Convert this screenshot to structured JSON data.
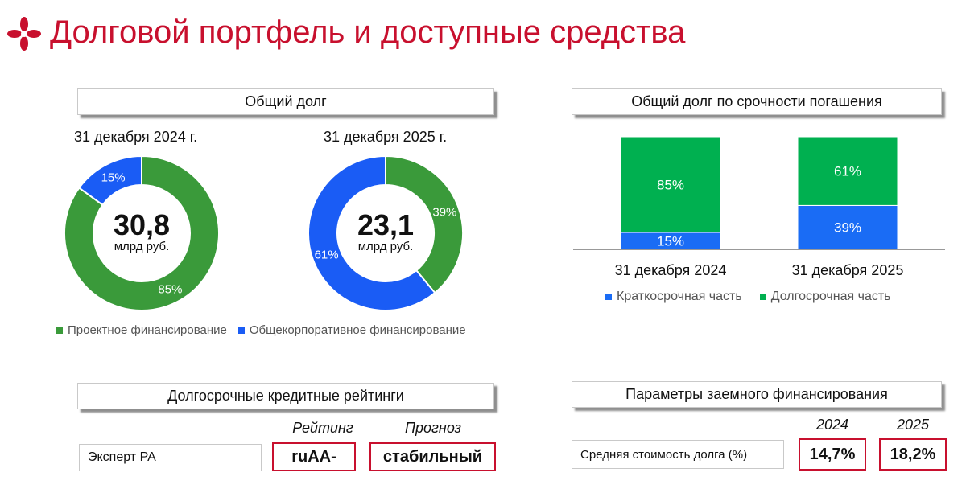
{
  "page": {
    "title": "Долговой портфель и доступные средства"
  },
  "colors": {
    "accent": "#c8102e",
    "green": "#3a9a3a",
    "blue": "#1a5cf5",
    "bar_green": "#00b050",
    "bar_blue": "#1a6cf5"
  },
  "total_debt": {
    "header": "Общий долг",
    "legend": [
      "Проектное финансирование",
      "Общекорпоративное финансирование"
    ],
    "charts": [
      {
        "date": "31 декабря 2024 г.",
        "value": "30,8",
        "unit": "млрд руб.",
        "labels": [
          "85%",
          "15%"
        ]
      },
      {
        "date": "31 декабря 2025 г.",
        "value": "23,1",
        "unit": "млрд руб.",
        "labels": [
          "39%",
          "61%"
        ]
      }
    ]
  },
  "maturity": {
    "header": "Общий долг по срочности погашения",
    "categories": [
      "31 декабря 2024",
      "31 декабря 2025"
    ],
    "legend": [
      "Краткосрочная часть",
      "Долгосрочная часть"
    ],
    "labels": {
      "short": [
        "15%",
        "39%"
      ],
      "long": [
        "85%",
        "61%"
      ]
    }
  },
  "ratings": {
    "header": "Долгосрочные кредитные рейтинги",
    "col_rating": "Рейтинг",
    "col_outlook": "Прогноз",
    "agency": "Эксперт РА",
    "rating": "ruAA-",
    "outlook": "стабильный"
  },
  "borrowing": {
    "header": "Параметры заемного финансирования",
    "years": [
      "2024",
      "2025"
    ],
    "metric": "Средняя стоимость долга (%)",
    "values": [
      "14,7%",
      "18,2%"
    ]
  },
  "chart_data": [
    {
      "type": "pie",
      "title": "31 декабря 2024 г.",
      "categories": [
        "Проектное финансирование",
        "Общекорпоративное финансирование"
      ],
      "values": [
        85,
        15
      ],
      "center_text": "30,8 млрд руб."
    },
    {
      "type": "pie",
      "title": "31 декабря 2025 г.",
      "categories": [
        "Проектное финансирование",
        "Общекорпоративное финансирование"
      ],
      "values": [
        39,
        61
      ],
      "center_text": "23,1 млрд руб."
    },
    {
      "type": "bar",
      "title": "Общий долг по срочности погашения",
      "categories": [
        "31 декабря 2024",
        "31 декабря 2025"
      ],
      "series": [
        {
          "name": "Краткосрочная часть",
          "values": [
            15,
            39
          ]
        },
        {
          "name": "Долгосрочная часть",
          "values": [
            85,
            61
          ]
        }
      ],
      "stacked": true,
      "ylim": [
        0,
        100
      ],
      "legend": "bottom"
    }
  ]
}
